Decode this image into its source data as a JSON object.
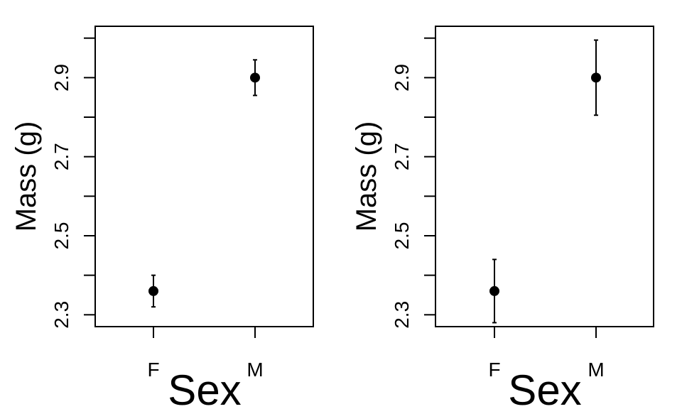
{
  "chart_data": [
    {
      "type": "scatter",
      "error_bars": true,
      "categories": [
        "F",
        "M"
      ],
      "values": [
        2.36,
        2.9
      ],
      "error_low": [
        2.32,
        2.855
      ],
      "error_high": [
        2.4,
        2.945
      ],
      "xlabel": "Sex",
      "ylabel": "Mass (g)",
      "yticks": [
        "2.3",
        "2.5",
        "2.7",
        "2.9"
      ],
      "yticks_unlabeled": [
        2.4,
        2.6,
        2.8,
        3.0
      ],
      "ylim": [
        2.27,
        3.03
      ],
      "grid": false,
      "marker_color": "#000000"
    },
    {
      "type": "scatter",
      "error_bars": true,
      "categories": [
        "F",
        "M"
      ],
      "values": [
        2.36,
        2.9
      ],
      "error_low": [
        2.28,
        2.805
      ],
      "error_high": [
        2.44,
        2.995
      ],
      "xlabel": "Sex",
      "ylabel": "Mass (g)",
      "yticks": [
        "2.3",
        "2.5",
        "2.7",
        "2.9"
      ],
      "yticks_unlabeled": [
        2.4,
        2.6,
        2.8,
        3.0
      ],
      "ylim": [
        2.27,
        3.03
      ],
      "grid": false,
      "marker_color": "#000000"
    }
  ]
}
